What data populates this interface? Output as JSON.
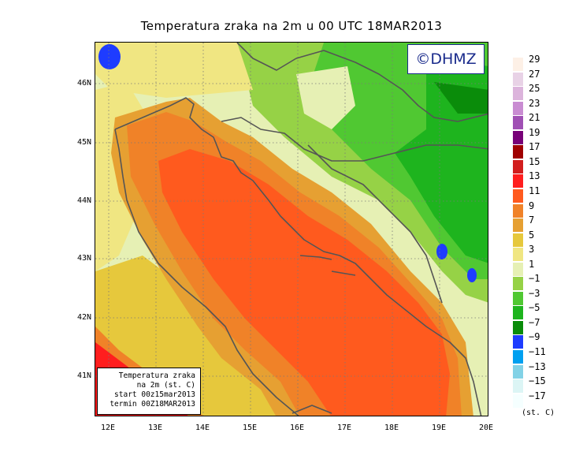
{
  "title": "Temperatura zraka na 2m u 00 UTC 18MAR2013",
  "watermark": "©DHMZ",
  "info_box": {
    "line1": "Temperatura zraka",
    "line2": "na 2m (st. C)",
    "line3": "start 00z15mar2013",
    "line4": "termin 00Z18MAR2013"
  },
  "lat_labels": [
    "46N",
    "45N",
    "44N",
    "43N",
    "42N",
    "41N"
  ],
  "lon_labels": [
    "12E",
    "13E",
    "14E",
    "15E",
    "16E",
    "17E",
    "18E",
    "19E",
    "20E"
  ],
  "legend": {
    "unit": "(st. C)",
    "items": [
      {
        "label": "29",
        "color": "#fdf0e6"
      },
      {
        "label": "27",
        "color": "#e8d2e6"
      },
      {
        "label": "25",
        "color": "#dcb4dc"
      },
      {
        "label": "23",
        "color": "#c98cd2"
      },
      {
        "label": "21",
        "color": "#a050b4"
      },
      {
        "label": "19",
        "color": "#780078"
      },
      {
        "label": "17",
        "color": "#a00000"
      },
      {
        "label": "15",
        "color": "#d21e1e"
      },
      {
        "label": "13",
        "color": "#ff1e1e"
      },
      {
        "label": "11",
        "color": "#ff5a1e"
      },
      {
        "label": "9",
        "color": "#f08228"
      },
      {
        "label": "7",
        "color": "#e6a032"
      },
      {
        "label": "5",
        "color": "#e6c83c"
      },
      {
        "label": "3",
        "color": "#f0e682"
      },
      {
        "label": "1",
        "color": "#e6f0b4"
      },
      {
        "label": "−1",
        "color": "#96d246"
      },
      {
        "label": "−3",
        "color": "#50c832"
      },
      {
        "label": "−5",
        "color": "#1eb41e"
      },
      {
        "label": "−7",
        "color": "#0a8c0a"
      },
      {
        "label": "−9",
        "color": "#1e3cff"
      },
      {
        "label": "−11",
        "color": "#00a0f0"
      },
      {
        "label": "−13",
        "color": "#82d2e6"
      },
      {
        "label": "−15",
        "color": "#dcf5f5"
      },
      {
        "label": "−17",
        "color": "#f5ffff"
      }
    ]
  },
  "colors": {
    "sea_core": "#ff5a1e",
    "sea_mid": "#f08228",
    "sea_edge": "#e6a032",
    "coast_warm": "#e6c83c",
    "coast_pale": "#f0e682",
    "land_pale": "#e6f0b4",
    "land_lightgreen": "#96d246",
    "land_green": "#50c832",
    "land_darkgreen": "#1eb41e",
    "land_deepgreen": "#0a8c0a",
    "cold_blue": "#1e3cff",
    "hot_red": "#ff1e1e",
    "border_line": "#555555"
  }
}
